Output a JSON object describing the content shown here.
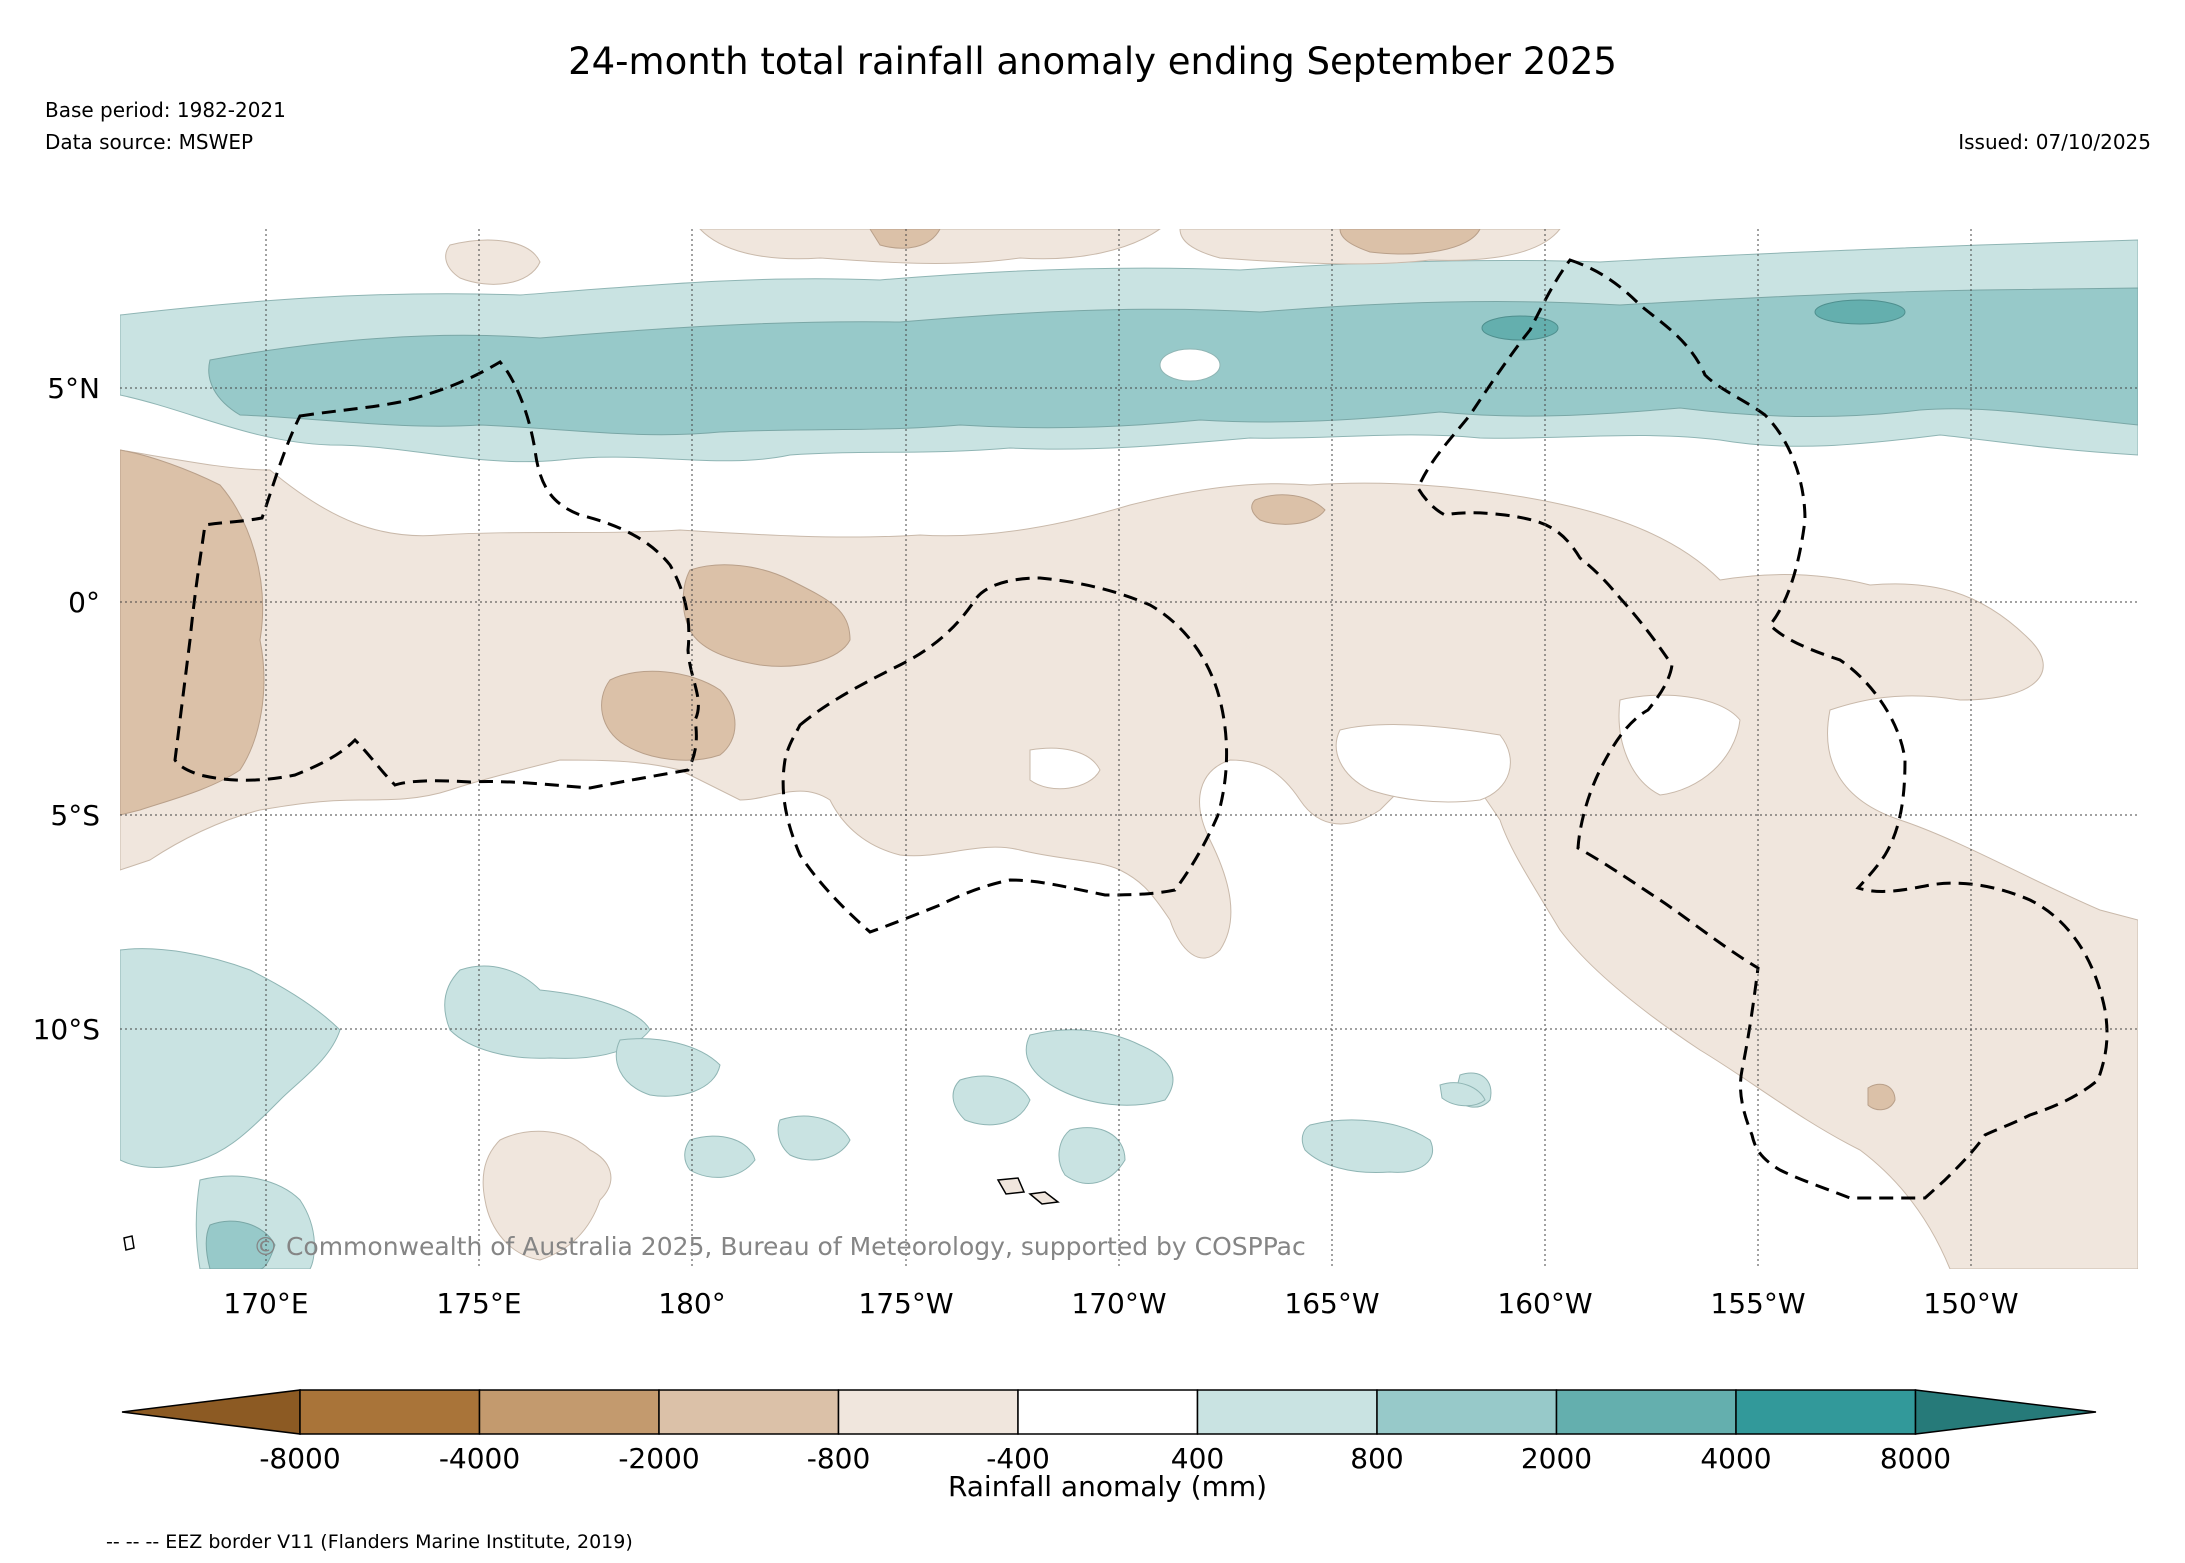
{
  "title": "24-month total rainfall anomaly ending September 2025",
  "base_period": "Base period: 1982-2021",
  "data_source": "Data source: MSWEP",
  "issued": "Issued: 07/10/2025",
  "copyright": "© Commonwealth of Australia 2025, Bureau of Meteorology, supported by COSPPac",
  "lat_labels": [
    "5°N",
    "0°",
    "5°S",
    "10°S"
  ],
  "lon_labels": [
    "170°E",
    "175°E",
    "180°",
    "175°W",
    "170°W",
    "165°W",
    "160°W",
    "155°W",
    "150°W"
  ],
  "colorbar": {
    "label": "Rainfall anomaly (mm)",
    "ticks": [
      "-8000",
      "-4000",
      "-2000",
      "-800",
      "-400",
      "400",
      "800",
      "2000",
      "4000",
      "8000"
    ],
    "colors": [
      "#8c5a23",
      "#a97439",
      "#c39a6e",
      "#dbc1a8",
      "#f0e6dd",
      "#ffffff",
      "#c9e3e2",
      "#97c9c9",
      "#64afae",
      "#32999a",
      "#267a79"
    ]
  },
  "legend_note": "-- -- -- EEZ border V11 (Flanders Marine Institute, 2019)"
}
